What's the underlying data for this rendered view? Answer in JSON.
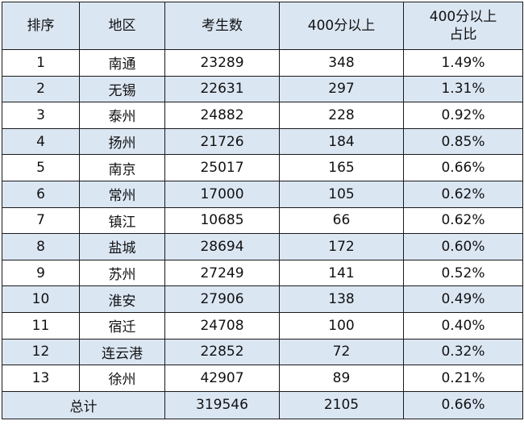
{
  "table": {
    "headers": {
      "rank": "排序",
      "region": "地区",
      "examinees": "考生数",
      "over400": "400分以上",
      "ratio_line1": "400分以上",
      "ratio_line2": "占比"
    },
    "rows": [
      {
        "rank": "1",
        "region": "南通",
        "examinees": "23289",
        "over400": "348",
        "ratio": "1.49%"
      },
      {
        "rank": "2",
        "region": "无锡",
        "examinees": "22631",
        "over400": "297",
        "ratio": "1.31%"
      },
      {
        "rank": "3",
        "region": "泰州",
        "examinees": "24882",
        "over400": "228",
        "ratio": "0.92%"
      },
      {
        "rank": "4",
        "region": "扬州",
        "examinees": "21726",
        "over400": "184",
        "ratio": "0.85%"
      },
      {
        "rank": "5",
        "region": "南京",
        "examinees": "25017",
        "over400": "165",
        "ratio": "0.66%"
      },
      {
        "rank": "6",
        "region": "常州",
        "examinees": "17000",
        "over400": "105",
        "ratio": "0.62%"
      },
      {
        "rank": "7",
        "region": "镇江",
        "examinees": "10685",
        "over400": "66",
        "ratio": "0.62%"
      },
      {
        "rank": "8",
        "region": "盐城",
        "examinees": "28694",
        "over400": "172",
        "ratio": "0.60%"
      },
      {
        "rank": "9",
        "region": "苏州",
        "examinees": "27249",
        "over400": "141",
        "ratio": "0.52%"
      },
      {
        "rank": "10",
        "region": "淮安",
        "examinees": "27906",
        "over400": "138",
        "ratio": "0.49%"
      },
      {
        "rank": "11",
        "region": "宿迁",
        "examinees": "24708",
        "over400": "100",
        "ratio": "0.40%"
      },
      {
        "rank": "12",
        "region": "连云港",
        "examinees": "22852",
        "over400": "72",
        "ratio": "0.32%"
      },
      {
        "rank": "13",
        "region": "徐州",
        "examinees": "42907",
        "over400": "89",
        "ratio": "0.21%"
      }
    ],
    "total": {
      "label": "总计",
      "examinees": "319546",
      "over400": "2105",
      "ratio": "0.66%"
    }
  },
  "colors": {
    "header_bg": "#dbe6f3",
    "shaded_row_bg": "#dbe6f3",
    "border": "#1a1a1a"
  }
}
